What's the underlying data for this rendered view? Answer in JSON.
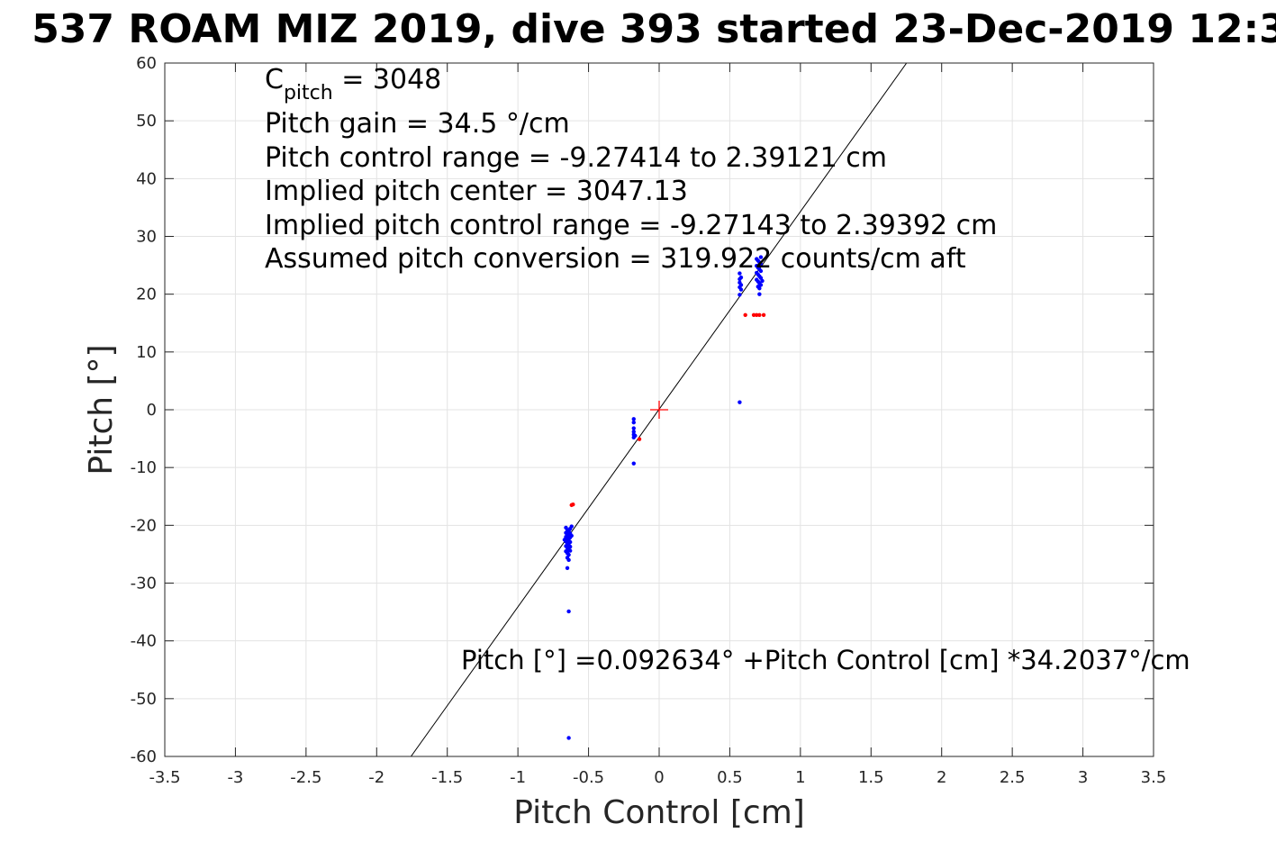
{
  "chart_data": {
    "type": "scatter",
    "title": "537 ROAM MIZ 2019, dive 393 started 23-Dec-2019 12:3",
    "xlabel": "Pitch Control [cm]",
    "ylabel": "Pitch [°]",
    "xlim": [
      -3.5,
      3.5
    ],
    "ylim": [
      -60,
      60
    ],
    "grid": true,
    "xticks": [
      "-3.5",
      "-3",
      "-2.5",
      "-2",
      "-1.5",
      "-1",
      "-0.5",
      "0",
      "0.5",
      "1",
      "1.5",
      "2",
      "2.5",
      "3",
      "3.5"
    ],
    "yticks": [
      "60",
      "50",
      "40",
      "30",
      "20",
      "10",
      "0",
      "-10",
      "-20",
      "-30",
      "-40",
      "-50",
      "-60"
    ],
    "annotations": {
      "c_pitch_symbol": "C",
      "c_pitch_subscript": "pitch",
      "c_pitch_value": " = 3048",
      "lines": [
        "Pitch gain = 34.5 °/cm",
        "Pitch control range = -9.27414 to 2.39121 cm",
        "Implied pitch center = 3047.13",
        "Implied pitch control range = -9.27143 to 2.39392 cm",
        "Assumed pitch conversion = 319.922 counts/cm aft"
      ],
      "fit_equation": "Pitch [°] =0.092634° +Pitch Control [cm] *34.2037°/cm"
    },
    "fit_line": {
      "intercept": 0.092634,
      "slope": 34.2037,
      "color": "#000000"
    },
    "center_marker": {
      "x": 0,
      "y": 0,
      "color": "#ff0000"
    },
    "series": [
      {
        "color": "#0000ff",
        "points": [
          [
            -0.66,
            -20.4
          ],
          [
            -0.65,
            -20.8
          ],
          [
            -0.64,
            -21.0
          ],
          [
            -0.63,
            -20.6
          ],
          [
            -0.66,
            -21.3
          ],
          [
            -0.65,
            -21.6
          ],
          [
            -0.64,
            -21.9
          ],
          [
            -0.63,
            -21.4
          ],
          [
            -0.66,
            -22.0
          ],
          [
            -0.65,
            -22.3
          ],
          [
            -0.64,
            -22.6
          ],
          [
            -0.63,
            -22.1
          ],
          [
            -0.66,
            -22.8
          ],
          [
            -0.65,
            -23.1
          ],
          [
            -0.64,
            -23.4
          ],
          [
            -0.63,
            -22.9
          ],
          [
            -0.66,
            -23.6
          ],
          [
            -0.65,
            -23.9
          ],
          [
            -0.64,
            -24.2
          ],
          [
            -0.63,
            -23.7
          ],
          [
            -0.66,
            -24.5
          ],
          [
            -0.65,
            -24.8
          ],
          [
            -0.64,
            -25.1
          ],
          [
            -0.63,
            -24.4
          ],
          [
            -0.65,
            -25.6
          ],
          [
            -0.64,
            -26.0
          ],
          [
            -0.65,
            -27.4
          ],
          [
            -0.64,
            -34.9
          ],
          [
            -0.64,
            -56.8
          ],
          [
            -0.67,
            -22.5
          ],
          [
            -0.62,
            -21.8
          ],
          [
            -0.62,
            -20.2
          ],
          [
            -0.18,
            -1.6
          ],
          [
            -0.18,
            -2.2
          ],
          [
            -0.18,
            -3.2
          ],
          [
            -0.18,
            -3.8
          ],
          [
            -0.18,
            -4.3
          ],
          [
            -0.18,
            -4.8
          ],
          [
            -0.17,
            -4.5
          ],
          [
            -0.18,
            -9.3
          ],
          [
            0.57,
            23.6
          ],
          [
            0.57,
            22.6
          ],
          [
            0.57,
            22.0
          ],
          [
            0.58,
            21.6
          ],
          [
            0.57,
            21.2
          ],
          [
            0.58,
            20.8
          ],
          [
            0.57,
            19.9
          ],
          [
            0.58,
            22.9
          ],
          [
            0.57,
            1.3
          ],
          [
            0.69,
            26.1
          ],
          [
            0.7,
            25.8
          ],
          [
            0.71,
            25.5
          ],
          [
            0.72,
            25.2
          ],
          [
            0.69,
            24.9
          ],
          [
            0.7,
            24.6
          ],
          [
            0.71,
            24.3
          ],
          [
            0.72,
            24.0
          ],
          [
            0.69,
            23.7
          ],
          [
            0.7,
            23.4
          ],
          [
            0.71,
            23.1
          ],
          [
            0.72,
            22.8
          ],
          [
            0.69,
            22.5
          ],
          [
            0.7,
            22.2
          ],
          [
            0.71,
            21.9
          ],
          [
            0.72,
            21.6
          ],
          [
            0.7,
            21.3
          ],
          [
            0.71,
            21.0
          ],
          [
            0.72,
            26.4
          ],
          [
            0.73,
            22.3
          ],
          [
            0.71,
            20.0
          ]
        ]
      },
      {
        "color": "#ff0000",
        "points": [
          [
            -0.61,
            -16.4
          ],
          [
            -0.62,
            -16.5
          ],
          [
            -0.14,
            -5.1
          ],
          [
            0.61,
            16.4
          ],
          [
            0.67,
            16.4
          ],
          [
            0.69,
            16.4
          ],
          [
            0.71,
            16.4
          ],
          [
            0.74,
            16.4
          ]
        ]
      }
    ]
  }
}
